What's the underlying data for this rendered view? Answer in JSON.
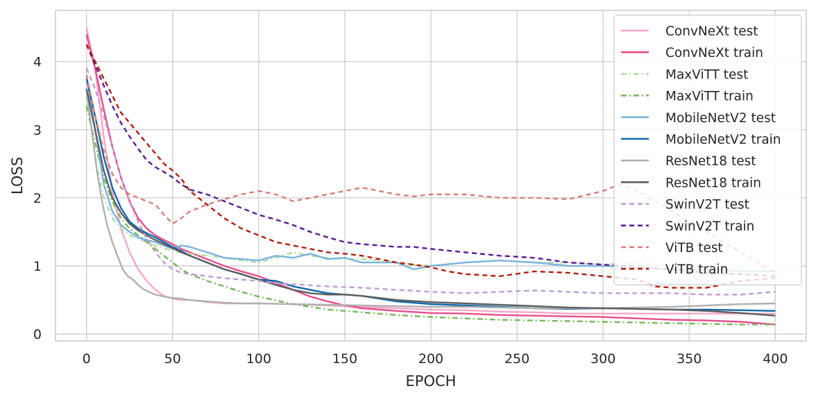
{
  "chart_data": {
    "type": "line",
    "title": "",
    "xlabel": "EPOCH",
    "ylabel": "LOSS",
    "xlim": [
      -18,
      418
    ],
    "ylim": [
      -0.1,
      4.75
    ],
    "xticks": [
      0,
      50,
      100,
      150,
      200,
      250,
      300,
      350,
      400
    ],
    "yticks": [
      0,
      1,
      2,
      3,
      4
    ],
    "grid": true,
    "legend_position": "top-right",
    "series": [
      {
        "name": "ConvNeXt test",
        "color": "#f7a6c8",
        "dash": "solid",
        "x": [
          0,
          5,
          10,
          15,
          20,
          25,
          30,
          35,
          40,
          45,
          50,
          55,
          60,
          70,
          80,
          90,
          100,
          120,
          140,
          160,
          180,
          200,
          220,
          240,
          260,
          280,
          300,
          320,
          340,
          360,
          380,
          400
        ],
        "y": [
          4.5,
          3.9,
          2.9,
          2.1,
          1.55,
          1.2,
          0.95,
          0.78,
          0.65,
          0.56,
          0.52,
          0.5,
          0.5,
          0.47,
          0.45,
          0.45,
          0.45,
          0.44,
          0.42,
          0.4,
          0.38,
          0.36,
          0.35,
          0.33,
          0.32,
          0.3,
          0.3,
          0.3,
          0.3,
          0.3,
          0.3,
          0.3
        ]
      },
      {
        "name": "ConvNeXt train",
        "color": "#e84c8a",
        "dash": "solid",
        "x": [
          0,
          5,
          10,
          15,
          20,
          25,
          30,
          35,
          40,
          45,
          50,
          55,
          60,
          70,
          80,
          90,
          100,
          110,
          120,
          130,
          140,
          150,
          160,
          180,
          200,
          220,
          240,
          260,
          280,
          300,
          320,
          340,
          360,
          380,
          400
        ],
        "y": [
          4.4,
          3.9,
          3.3,
          2.75,
          2.3,
          1.95,
          1.7,
          1.55,
          1.45,
          1.38,
          1.32,
          1.25,
          1.2,
          1.1,
          1.0,
          0.92,
          0.85,
          0.75,
          0.65,
          0.55,
          0.48,
          0.42,
          0.38,
          0.34,
          0.31,
          0.3,
          0.28,
          0.27,
          0.26,
          0.25,
          0.23,
          0.21,
          0.2,
          0.18,
          0.14
        ]
      },
      {
        "name": "MaxViTT test",
        "color": "#b4dca3",
        "dash": "8,4,2,4",
        "x": [
          0,
          5,
          10,
          15,
          20,
          25,
          30,
          35,
          40,
          50,
          60,
          70,
          80,
          90,
          100,
          110,
          120,
          130,
          140,
          150,
          160,
          170,
          180,
          190,
          200,
          220,
          240,
          260,
          280,
          300,
          320,
          340,
          360,
          380,
          400
        ],
        "y": [
          3.5,
          2.6,
          2.0,
          1.7,
          1.55,
          1.45,
          1.4,
          1.35,
          1.3,
          1.22,
          1.18,
          1.15,
          1.12,
          1.08,
          1.05,
          1.12,
          1.2,
          1.15,
          1.12,
          1.1,
          1.1,
          1.08,
          1.05,
          1.02,
          1.0,
          1.05,
          1.08,
          1.05,
          1.05,
          1.02,
          1.05,
          1.0,
          0.98,
          0.95,
          0.92
        ]
      },
      {
        "name": "MaxViTT train",
        "color": "#74b857",
        "dash": "8,4,2,4",
        "x": [
          0,
          5,
          10,
          15,
          20,
          25,
          30,
          35,
          40,
          45,
          50,
          55,
          60,
          70,
          80,
          90,
          100,
          120,
          140,
          160,
          180,
          200,
          220,
          240,
          260,
          280,
          300,
          320,
          340,
          360,
          380,
          400
        ],
        "y": [
          3.35,
          2.8,
          2.3,
          1.95,
          1.7,
          1.55,
          1.45,
          1.35,
          1.25,
          1.15,
          1.05,
          0.95,
          0.88,
          0.78,
          0.7,
          0.62,
          0.55,
          0.44,
          0.36,
          0.32,
          0.28,
          0.25,
          0.23,
          0.21,
          0.2,
          0.19,
          0.18,
          0.17,
          0.16,
          0.15,
          0.14,
          0.14
        ]
      },
      {
        "name": "MobileNetV2 test",
        "color": "#7ab3dd",
        "dash": "solid",
        "x": [
          0,
          5,
          10,
          15,
          20,
          25,
          30,
          35,
          40,
          50,
          55,
          60,
          70,
          80,
          90,
          100,
          110,
          120,
          130,
          140,
          150,
          160,
          170,
          180,
          190,
          200,
          220,
          240,
          260,
          280,
          300,
          320,
          340,
          360,
          380,
          400
        ],
        "y": [
          3.8,
          3.0,
          2.2,
          1.8,
          1.6,
          1.5,
          1.42,
          1.38,
          1.35,
          1.25,
          1.3,
          1.28,
          1.2,
          1.12,
          1.1,
          1.08,
          1.15,
          1.12,
          1.18,
          1.1,
          1.12,
          1.05,
          1.05,
          1.05,
          0.95,
          1.0,
          1.05,
          1.08,
          1.05,
          1.0,
          1.0,
          0.98,
          0.95,
          0.95,
          0.92,
          0.92
        ]
      },
      {
        "name": "MobileNetV2 train",
        "color": "#0e67ac",
        "dash": "solid",
        "x": [
          0,
          5,
          10,
          15,
          20,
          25,
          30,
          35,
          40,
          45,
          50,
          55,
          60,
          70,
          80,
          90,
          100,
          110,
          120,
          130,
          140,
          150,
          160,
          180,
          200,
          220,
          240,
          260,
          280,
          300,
          320,
          340,
          360,
          380,
          400
        ],
        "y": [
          3.75,
          3.2,
          2.6,
          2.15,
          1.85,
          1.65,
          1.55,
          1.48,
          1.42,
          1.35,
          1.28,
          1.22,
          1.15,
          1.05,
          0.95,
          0.88,
          0.8,
          0.78,
          0.7,
          0.65,
          0.6,
          0.58,
          0.56,
          0.48,
          0.44,
          0.42,
          0.4,
          0.38,
          0.37,
          0.38,
          0.37,
          0.36,
          0.36,
          0.35,
          0.34
        ]
      },
      {
        "name": "ResNet18 test",
        "color": "#b0b0b0",
        "dash": "solid",
        "x": [
          0,
          3,
          6,
          9,
          12,
          15,
          18,
          21,
          24,
          27,
          30,
          33,
          36,
          40,
          45,
          50,
          55,
          60,
          70,
          80,
          90,
          100,
          120,
          140,
          160,
          180,
          200,
          220,
          240,
          260,
          280,
          300,
          320,
          340,
          360,
          380,
          400
        ],
        "y": [
          3.6,
          3.0,
          2.4,
          1.95,
          1.6,
          1.35,
          1.15,
          0.95,
          0.85,
          0.8,
          0.72,
          0.66,
          0.62,
          0.58,
          0.55,
          0.53,
          0.52,
          0.5,
          0.48,
          0.46,
          0.45,
          0.45,
          0.44,
          0.43,
          0.42,
          0.41,
          0.4,
          0.4,
          0.39,
          0.38,
          0.38,
          0.38,
          0.39,
          0.4,
          0.42,
          0.44,
          0.45
        ]
      },
      {
        "name": "ResNet18 train",
        "color": "#5f5f5f",
        "dash": "solid",
        "x": [
          0,
          5,
          10,
          15,
          20,
          25,
          30,
          35,
          40,
          45,
          50,
          55,
          60,
          70,
          80,
          90,
          100,
          110,
          120,
          130,
          140,
          150,
          160,
          180,
          200,
          220,
          240,
          260,
          280,
          300,
          320,
          340,
          360,
          380,
          400
        ],
        "y": [
          3.6,
          3.0,
          2.4,
          2.0,
          1.78,
          1.62,
          1.52,
          1.45,
          1.38,
          1.32,
          1.26,
          1.2,
          1.15,
          1.05,
          0.95,
          0.88,
          0.8,
          0.72,
          0.65,
          0.6,
          0.58,
          0.58,
          0.56,
          0.5,
          0.47,
          0.45,
          0.43,
          0.41,
          0.39,
          0.38,
          0.37,
          0.36,
          0.34,
          0.31,
          0.27
        ]
      },
      {
        "name": "SwinV2T test",
        "color": "#c09ad2",
        "dash": "7,5",
        "x": [
          0,
          5,
          10,
          15,
          20,
          25,
          30,
          35,
          40,
          45,
          50,
          55,
          60,
          70,
          80,
          90,
          100,
          110,
          120,
          140,
          160,
          180,
          200,
          220,
          240,
          260,
          280,
          300,
          320,
          340,
          360,
          380,
          400
        ],
        "y": [
          3.9,
          3.6,
          3.2,
          2.75,
          2.3,
          1.95,
          1.65,
          1.4,
          1.2,
          1.05,
          0.95,
          0.9,
          0.88,
          0.85,
          0.82,
          0.8,
          0.78,
          0.75,
          0.73,
          0.7,
          0.68,
          0.65,
          0.62,
          0.6,
          0.62,
          0.64,
          0.62,
          0.6,
          0.6,
          0.6,
          0.58,
          0.58,
          0.62
        ]
      },
      {
        "name": "SwinV2T train",
        "color": "#5a1a93",
        "dash": "7,5",
        "x": [
          0,
          5,
          10,
          15,
          20,
          25,
          30,
          35,
          40,
          45,
          50,
          55,
          60,
          70,
          80,
          90,
          100,
          110,
          120,
          130,
          140,
          150,
          160,
          170,
          180,
          190,
          200,
          220,
          240,
          260,
          280,
          300,
          320,
          340,
          360,
          380,
          400
        ],
        "y": [
          4.25,
          3.95,
          3.65,
          3.35,
          3.1,
          2.9,
          2.72,
          2.55,
          2.45,
          2.38,
          2.3,
          2.2,
          2.12,
          2.05,
          1.95,
          1.85,
          1.75,
          1.68,
          1.6,
          1.5,
          1.42,
          1.35,
          1.32,
          1.3,
          1.28,
          1.28,
          1.25,
          1.2,
          1.15,
          1.12,
          1.05,
          1.02,
          0.98,
          0.95,
          0.9,
          0.88,
          0.85
        ]
      },
      {
        "name": "ViTB test",
        "color": "#d5807b",
        "dash": "7,5",
        "x": [
          0,
          5,
          10,
          15,
          20,
          25,
          30,
          35,
          40,
          45,
          50,
          55,
          60,
          70,
          80,
          90,
          100,
          110,
          120,
          130,
          140,
          150,
          160,
          170,
          180,
          190,
          200,
          220,
          240,
          260,
          280,
          300,
          310,
          320,
          340,
          360,
          380,
          400
        ],
        "y": [
          3.8,
          3.2,
          2.7,
          2.35,
          2.15,
          2.05,
          2.0,
          1.95,
          1.9,
          1.75,
          1.62,
          1.7,
          1.8,
          1.9,
          1.98,
          2.05,
          2.1,
          2.05,
          1.95,
          2.0,
          2.05,
          2.1,
          2.15,
          2.1,
          2.05,
          2.02,
          2.05,
          2.05,
          2.0,
          2.0,
          1.98,
          2.1,
          2.2,
          2.1,
          1.8,
          1.5,
          1.2,
          0.9
        ]
      },
      {
        "name": "ViTB train",
        "color": "#b01e0c",
        "dash": "7,5",
        "x": [
          0,
          5,
          10,
          15,
          20,
          25,
          30,
          35,
          40,
          45,
          50,
          55,
          60,
          70,
          80,
          90,
          100,
          110,
          120,
          130,
          140,
          150,
          160,
          170,
          180,
          190,
          200,
          210,
          220,
          240,
          260,
          280,
          300,
          320,
          330,
          340,
          360,
          380,
          400
        ],
        "y": [
          4.25,
          4.0,
          3.75,
          3.5,
          3.25,
          3.1,
          2.95,
          2.8,
          2.65,
          2.5,
          2.4,
          2.28,
          2.1,
          1.9,
          1.7,
          1.55,
          1.45,
          1.35,
          1.3,
          1.25,
          1.2,
          1.18,
          1.15,
          1.1,
          1.05,
          1.02,
          0.98,
          0.92,
          0.88,
          0.85,
          0.92,
          0.9,
          0.85,
          0.8,
          0.7,
          0.68,
          0.68,
          0.78,
          0.82
        ]
      }
    ]
  }
}
